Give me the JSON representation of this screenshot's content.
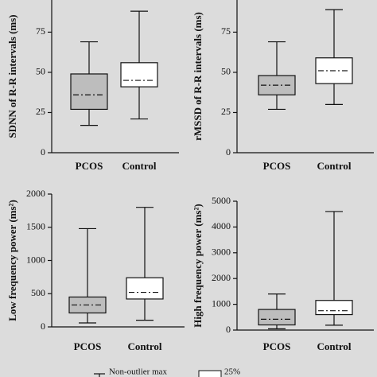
{
  "chart_data": [
    {
      "type": "box",
      "y_label": "SDNN of R-R intervals (ms)",
      "categories": [
        "PCOS",
        "Control"
      ],
      "colors": [
        "#bdbdbd",
        "#ffffff"
      ],
      "boxes": [
        {
          "min": 17,
          "q1": 27,
          "median": 36,
          "q3": 49,
          "max": 69
        },
        {
          "min": 21,
          "q1": 41,
          "median": 45,
          "q3": 56,
          "max": 88
        }
      ],
      "ylim": [
        0,
        95
      ],
      "yticks": [
        0,
        25,
        50,
        75
      ]
    },
    {
      "type": "box",
      "y_label": "rMSSD of R-R intervals (ms)",
      "categories": [
        "PCOS",
        "Control"
      ],
      "colors": [
        "#bdbdbd",
        "#ffffff"
      ],
      "boxes": [
        {
          "min": 27,
          "q1": 36,
          "median": 42,
          "q3": 48,
          "max": 69
        },
        {
          "min": 30,
          "q1": 43,
          "median": 51,
          "q3": 59,
          "max": 89
        }
      ],
      "ylim": [
        0,
        95
      ],
      "yticks": [
        0,
        25,
        50,
        75
      ]
    },
    {
      "type": "box",
      "y_label": "Low frequency power (ms²)",
      "categories": [
        "PCOS",
        "Control"
      ],
      "colors": [
        "#bdbdbd",
        "#ffffff"
      ],
      "boxes": [
        {
          "min": 60,
          "q1": 210,
          "median": 330,
          "q3": 450,
          "max": 1480
        },
        {
          "min": 100,
          "q1": 420,
          "median": 520,
          "q3": 740,
          "max": 1800
        }
      ],
      "ylim": [
        0,
        2000
      ],
      "yticks": [
        0,
        500,
        1000,
        1500,
        2000
      ]
    },
    {
      "type": "box",
      "y_label": "High frequency power (ms²)",
      "categories": [
        "PCOS",
        "Control"
      ],
      "colors": [
        "#bdbdbd",
        "#ffffff"
      ],
      "boxes": [
        {
          "min": 50,
          "q1": 200,
          "median": 420,
          "q3": 800,
          "max": 1400
        },
        {
          "min": 190,
          "q1": 600,
          "median": 750,
          "q3": 1150,
          "max": 4600
        }
      ],
      "ylim": [
        0,
        5000
      ],
      "yticks": [
        0,
        1000,
        2000,
        3000,
        4000,
        5000
      ]
    }
  ],
  "legend": {
    "whisker_label": "Non-outlier max",
    "box_label": "25%"
  }
}
